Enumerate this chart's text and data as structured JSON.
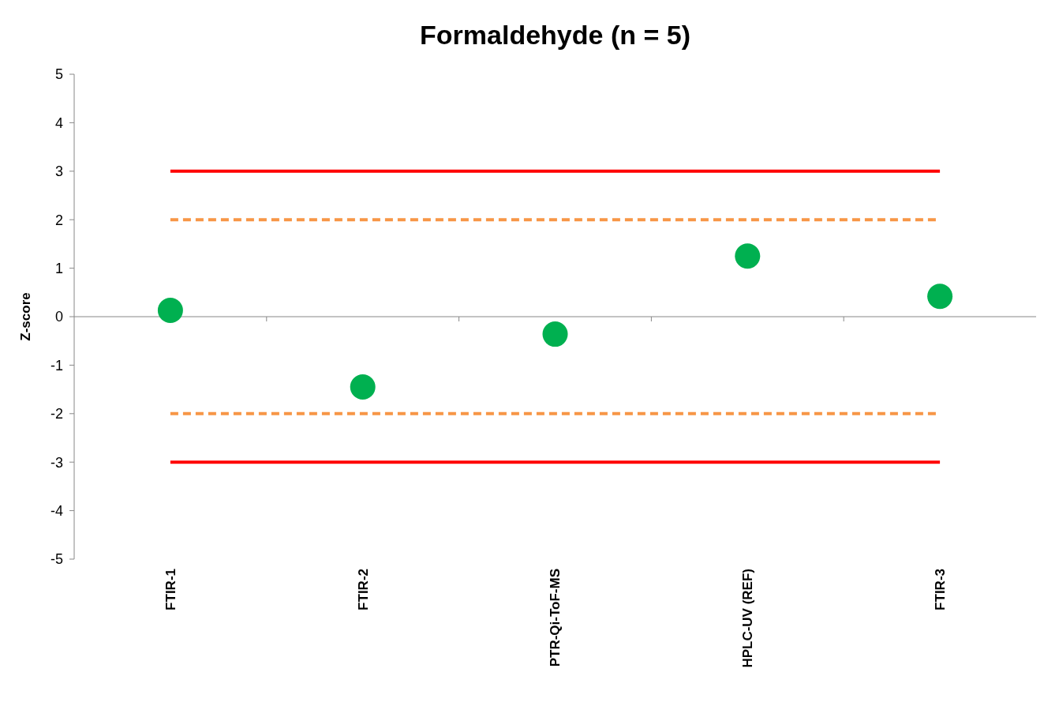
{
  "chart_data": {
    "type": "scatter",
    "title": "Formaldehyde (n = 5)",
    "ylabel": "Z-score",
    "categories": [
      "FTIR-1",
      "FTIR-2",
      "PTR-Qi-ToF-MS",
      "HPLC-UV (REF)",
      "FTIR-3"
    ],
    "values": [
      0.13,
      -1.45,
      -0.36,
      1.25,
      0.42
    ],
    "color": "#00b050",
    "marker": "circle",
    "ylim": [
      -5,
      5
    ],
    "yticks": [
      -5,
      -4,
      -3,
      -2,
      -1,
      0,
      1,
      2,
      3,
      4,
      5
    ],
    "ref_lines": [
      {
        "axis": "y",
        "value": 3,
        "color": "#ff0000",
        "line_style": "solid"
      },
      {
        "axis": "y",
        "value": 2,
        "color": "#f79646",
        "line_style": "dashed"
      },
      {
        "axis": "y",
        "value": -2,
        "color": "#f79646",
        "line_style": "dashed"
      },
      {
        "axis": "y",
        "value": -3,
        "color": "#ff0000",
        "line_style": "solid"
      }
    ]
  }
}
